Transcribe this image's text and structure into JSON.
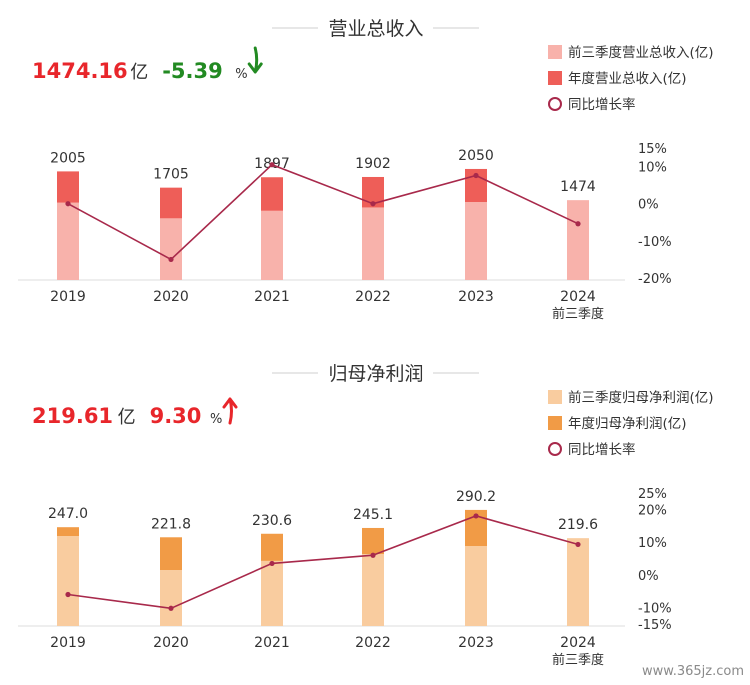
{
  "watermark": "www.365jz.com",
  "colors": {
    "q3": "#f8b2ab",
    "q3_np": "#f9cc9f",
    "annual": "#ee5e58",
    "annual_np": "#f19b46",
    "line": "#a8294b",
    "up_red": "#e8262b",
    "down_green": "#228a22",
    "axis": "#dddddd",
    "text": "#333333"
  },
  "chart_data": [
    {
      "type": "bar",
      "title": "营业总收入",
      "headline": {
        "value": "1474.16",
        "unit": "亿",
        "change": "-5.39",
        "change_unit": "%",
        "direction": "down",
        "arrow_icon": "arrow-down-icon"
      },
      "legend": [
        "前三季度营业总收入(亿)",
        "年度营业总收入(亿)",
        "同比增长率"
      ],
      "legend_position": "top-right",
      "categories": [
        "2019",
        "2020",
        "2021",
        "2022",
        "2023",
        "2024"
      ],
      "category_sublabels": [
        "",
        "",
        "",
        "",
        "",
        "前三季度"
      ],
      "series": [
        {
          "name": "前三季度营业总收入(亿)",
          "values": [
            1430,
            1140,
            1280,
            1340,
            1440,
            1474
          ]
        },
        {
          "name": "年度营业总收入(亿)",
          "values": [
            2005,
            1705,
            1897,
            1902,
            2050,
            null
          ]
        },
        {
          "name": "同比增长率",
          "values": [
            0,
            -15,
            10.5,
            0,
            7.6,
            -5.39
          ]
        }
      ],
      "data_labels": [
        "2005",
        "1705",
        "1897",
        "1902",
        "2050",
        "1474"
      ],
      "ylim": [
        0,
        2400
      ],
      "y2lim": [
        -20,
        15
      ],
      "y2ticks": [
        "15%",
        "10%",
        "0%",
        "-10%",
        "-20%"
      ],
      "grid": false
    },
    {
      "type": "bar",
      "title": "归母净利润",
      "headline": {
        "value": "219.61",
        "unit": "亿",
        "change": "9.30",
        "change_unit": "%",
        "direction": "up",
        "arrow_icon": "arrow-up-icon"
      },
      "legend": [
        "前三季度归母净利润(亿)",
        "年度归母净利润(亿)",
        "同比增长率"
      ],
      "legend_position": "top-right",
      "categories": [
        "2019",
        "2020",
        "2021",
        "2022",
        "2023",
        "2024"
      ],
      "category_sublabels": [
        "",
        "",
        "",
        "",
        "",
        "前三季度"
      ],
      "series": [
        {
          "name": "前三季度归母净利润(亿)",
          "values": [
            225,
            140,
            163,
            180,
            200,
            219.6
          ]
        },
        {
          "name": "年度归母净利润(亿)",
          "values": [
            247.0,
            221.8,
            230.6,
            245.1,
            290.2,
            null
          ]
        },
        {
          "name": "同比增长率",
          "values": [
            -6,
            -10.2,
            3.5,
            6,
            18,
            9.3
          ]
        }
      ],
      "data_labels": [
        "247.0",
        "221.8",
        "230.6",
        "245.1",
        "290.2",
        "219.6"
      ],
      "ylim": [
        0,
        340
      ],
      "y2lim": [
        -15,
        25
      ],
      "y2ticks": [
        "25%",
        "20%",
        "10%",
        "0%",
        "-10%",
        "-15%"
      ],
      "grid": false
    }
  ]
}
